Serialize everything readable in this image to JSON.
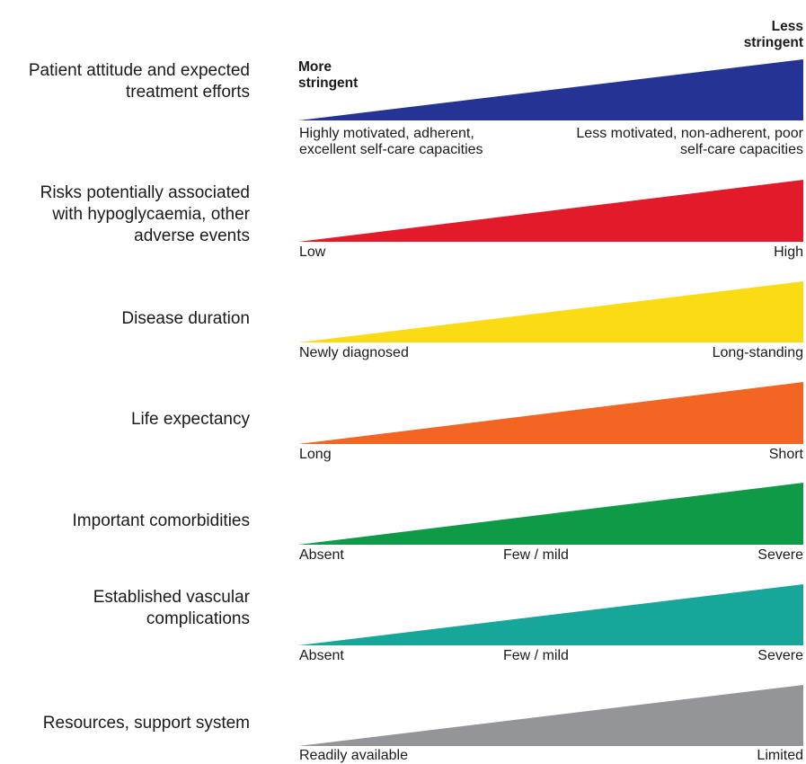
{
  "headings": {
    "more_stringent": "More\nstringent",
    "less_stringent": "Less\nstringent"
  },
  "rows": [
    {
      "factor": "Patient attitude and expected\ntreatment efforts",
      "color": "#253494",
      "left_label": "Highly motivated, adherent,\nexcellent self-care capacities",
      "right_label": "Less motivated, non-adherent, poor\nself-care capacities"
    },
    {
      "factor": "Risks potentially associated\nwith hypoglycaemia, other\nadverse events",
      "color": "#e31a2a",
      "left_label": "Low",
      "right_label": "High"
    },
    {
      "factor": "Disease duration",
      "color": "#fbdc14",
      "left_label": "Newly diagnosed",
      "right_label": "Long-standing"
    },
    {
      "factor": "Life expectancy",
      "color": "#f26522",
      "left_label": "Long",
      "right_label": "Short"
    },
    {
      "factor": "Important comorbidities",
      "color": "#0f9a48",
      "left_label": "Absent",
      "mid_label": "Few / mild",
      "right_label": "Severe"
    },
    {
      "factor": "Established vascular\ncomplications",
      "color": "#17a79a",
      "left_label": "Absent",
      "mid_label": "Few / mild",
      "right_label": "Severe"
    },
    {
      "factor": "Resources, support system",
      "color": "#939598",
      "left_label": "Readily available",
      "right_label": "Limited"
    }
  ]
}
